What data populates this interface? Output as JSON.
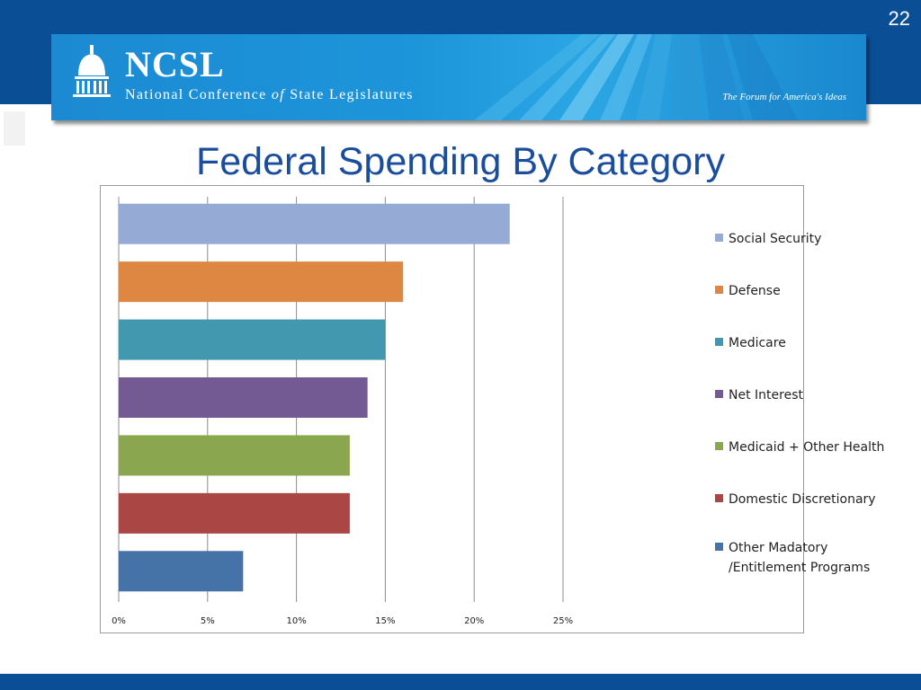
{
  "slide": {
    "number": "22",
    "title": "Federal Spending By Category"
  },
  "banner": {
    "logo": "NCSL",
    "org_name": "National Conference of State Legislatures",
    "org_name_pre": "National Conference",
    "org_name_of": "of",
    "org_name_post": "State Legislatures",
    "tagline": "The Forum for America's Ideas",
    "logo_icon": "capitol-dome-icon"
  },
  "colors": {
    "header": "#0a4f96",
    "banner": "#1d95da",
    "title": "#1a4e9c"
  },
  "chart_data": {
    "type": "bar",
    "orientation": "horizontal",
    "title": "",
    "xlabel": "",
    "ylabel": "",
    "xlim": [
      0,
      25
    ],
    "x_ticks": [
      "0%",
      "5%",
      "10%",
      "15%",
      "20%",
      "25%"
    ],
    "grid": true,
    "legend_position": "right",
    "series": [
      {
        "name": "Social Security",
        "value": 22,
        "color": "#95abd5"
      },
      {
        "name": "Defense",
        "value": 16,
        "color": "#dd8742"
      },
      {
        "name": "Medicare",
        "value": 15,
        "color": "#4298ae"
      },
      {
        "name": "Net Interest",
        "value": 14,
        "color": "#735a92"
      },
      {
        "name": "Medicaid + Other Health",
        "value": 13,
        "color": "#8aa64e"
      },
      {
        "name": "Domestic Discretionary",
        "value": 13,
        "color": "#aa4644"
      },
      {
        "name": "Other Madatory /Entitlement Programs",
        "value": 7,
        "color": "#4573a7"
      }
    ]
  }
}
